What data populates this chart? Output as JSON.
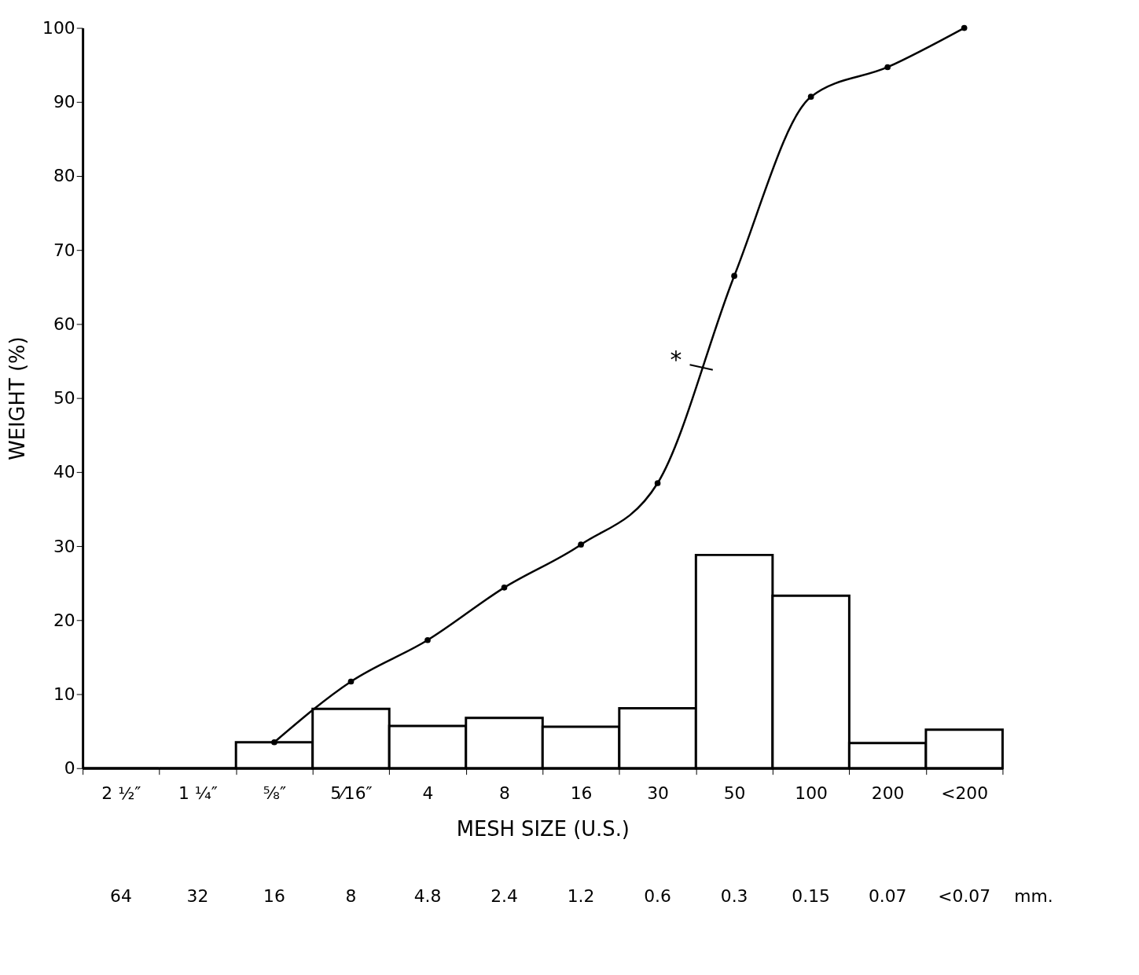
{
  "chart_data": {
    "type": "bar",
    "xlabel": "MESH SIZE (U.S.)",
    "ylabel": "WEIGHT (%)",
    "categories": [
      "2 ½″",
      "1 ¼″",
      "⅝″",
      "5⁄16″",
      "4",
      "8",
      "16",
      "30",
      "50",
      "100",
      "200",
      "<200"
    ],
    "ylim": [
      0,
      100
    ],
    "yticks": [
      0,
      10,
      20,
      30,
      40,
      50,
      60,
      70,
      80,
      90,
      100
    ],
    "grid": false,
    "marker": "circle",
    "series": [
      {
        "color": "#000000",
        "values": [
          0,
          0,
          3.5,
          8,
          5.7,
          6.8,
          5.6,
          8.1,
          28.8,
          23.3,
          3.4,
          5.2
        ]
      },
      {
        "type": "line",
        "color": "#000000",
        "values": [
          null,
          null,
          3.5,
          11.7,
          17.3,
          24.4,
          30.2,
          38.5,
          66.5,
          90.7,
          94.7,
          100
        ]
      }
    ],
    "annotations": [
      "64",
      "32",
      "16",
      "8",
      "4.8",
      "2.4",
      "1.2",
      "0.6",
      "0.3",
      "0.15",
      "0.07",
      "<0.07",
      "mm.",
      "*"
    ]
  }
}
